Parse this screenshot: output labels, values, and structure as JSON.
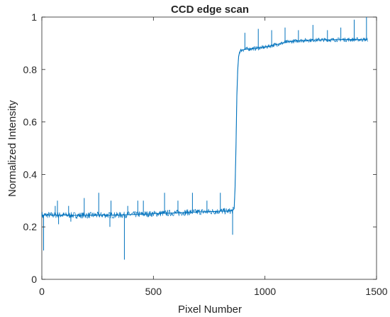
{
  "chart_data": {
    "type": "line",
    "title": "CCD edge scan",
    "xlabel": "Pixel Number",
    "ylabel": "Normalized Intensity",
    "xlim": [
      0,
      1500
    ],
    "ylim": [
      0,
      1
    ],
    "xticks": [
      0,
      500,
      1000,
      1500
    ],
    "xtick_labels": [
      "0",
      "500",
      "1000",
      "1500"
    ],
    "yticks": [
      0,
      0.2,
      0.4,
      0.6,
      0.8,
      1
    ],
    "ytick_labels": [
      "0",
      "0.2",
      "0.4",
      "0.6",
      "0.8",
      "1"
    ],
    "grid": false,
    "legend": "none",
    "line_color": "#0072BD",
    "series": [
      {
        "x": [
          0,
          5,
          10,
          20,
          50,
          100,
          150,
          200,
          250,
          300,
          350,
          400,
          450,
          500,
          550,
          600,
          650,
          700,
          750,
          800,
          840,
          855,
          862,
          866,
          870,
          874,
          878,
          882,
          886,
          890,
          900,
          920,
          950,
          1000,
          1050,
          1100,
          1150,
          1200,
          1250,
          1300,
          1350,
          1400,
          1450,
          1460
        ],
        "y": [
          0.25,
          0.24,
          0.245,
          0.245,
          0.245,
          0.245,
          0.244,
          0.244,
          0.245,
          0.245,
          0.245,
          0.247,
          0.248,
          0.25,
          0.252,
          0.253,
          0.255,
          0.257,
          0.258,
          0.26,
          0.26,
          0.262,
          0.27,
          0.35,
          0.5,
          0.7,
          0.8,
          0.85,
          0.865,
          0.872,
          0.875,
          0.878,
          0.88,
          0.885,
          0.895,
          0.905,
          0.91,
          0.912,
          0.913,
          0.913,
          0.914,
          0.914,
          0.914,
          0.913
        ]
      }
    ],
    "spikes": [
      {
        "x": 8,
        "y": 0.11
      },
      {
        "x": 60,
        "y": 0.28
      },
      {
        "x": 70,
        "y": 0.3
      },
      {
        "x": 75,
        "y": 0.21
      },
      {
        "x": 120,
        "y": 0.28
      },
      {
        "x": 130,
        "y": 0.22
      },
      {
        "x": 190,
        "y": 0.31
      },
      {
        "x": 255,
        "y": 0.33
      },
      {
        "x": 305,
        "y": 0.2
      },
      {
        "x": 310,
        "y": 0.3
      },
      {
        "x": 370,
        "y": 0.075
      },
      {
        "x": 385,
        "y": 0.28
      },
      {
        "x": 430,
        "y": 0.3
      },
      {
        "x": 455,
        "y": 0.3
      },
      {
        "x": 550,
        "y": 0.33
      },
      {
        "x": 610,
        "y": 0.3
      },
      {
        "x": 675,
        "y": 0.33
      },
      {
        "x": 740,
        "y": 0.3
      },
      {
        "x": 800,
        "y": 0.33
      },
      {
        "x": 855,
        "y": 0.17
      },
      {
        "x": 910,
        "y": 0.94
      },
      {
        "x": 970,
        "y": 0.955
      },
      {
        "x": 1030,
        "y": 0.95
      },
      {
        "x": 1090,
        "y": 0.96
      },
      {
        "x": 1150,
        "y": 0.95
      },
      {
        "x": 1215,
        "y": 0.97
      },
      {
        "x": 1280,
        "y": 0.95
      },
      {
        "x": 1340,
        "y": 0.96
      },
      {
        "x": 1400,
        "y": 0.99
      },
      {
        "x": 1455,
        "y": 1.0
      }
    ]
  }
}
